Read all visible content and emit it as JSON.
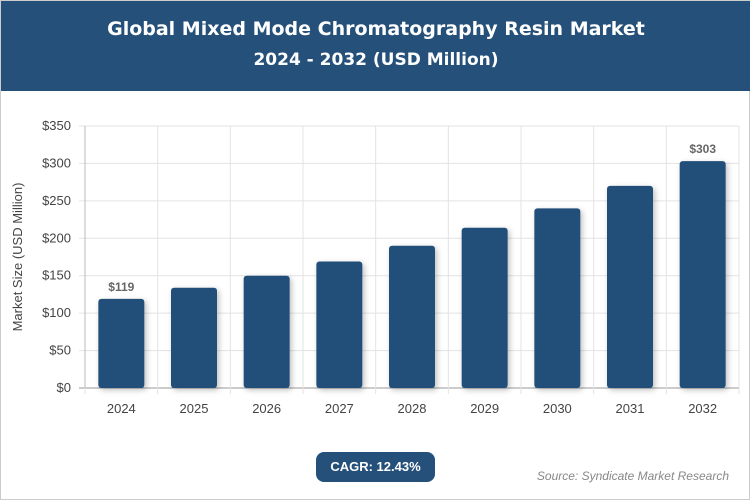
{
  "header": {
    "title": "Global Mixed Mode Chromatography Resin Market",
    "subtitle": "2024 - 2032 (USD Million)"
  },
  "chart_data": {
    "type": "bar",
    "title": "Global Mixed Mode Chromatography Resin Market",
    "subtitle": "2024 - 2032 (USD Million)",
    "categories": [
      "2024",
      "2025",
      "2026",
      "2027",
      "2028",
      "2029",
      "2030",
      "2031",
      "2032"
    ],
    "values": [
      119,
      134,
      150,
      169,
      190,
      214,
      240,
      270,
      303
    ],
    "data_labels": {
      "0": "$119",
      "8": "$303"
    },
    "xlabel": "",
    "ylabel": "Market Size (USD Million)",
    "ylim": [
      0,
      350
    ],
    "yticks": [
      "$0",
      "$50",
      "$100",
      "$150",
      "$200",
      "$250",
      "$300",
      "$350"
    ],
    "grid": true,
    "bar_color": "#24507a"
  },
  "cagr": "CAGR: 12.43%",
  "source": "Source: Syndicate Market Research"
}
